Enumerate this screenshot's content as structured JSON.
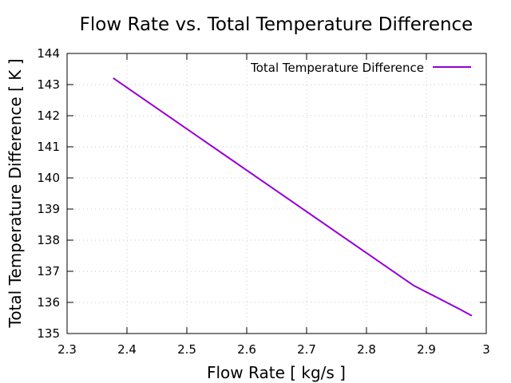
{
  "chart_data": {
    "type": "line",
    "title": "Flow Rate vs. Total Temperature Difference",
    "xlabel": "Flow Rate [ kg/s ]",
    "ylabel": "Total Temperature Difference [ K ]",
    "xlim": [
      2.3,
      3.0
    ],
    "ylim": [
      135,
      144
    ],
    "xticks": [
      "2.3",
      "2.4",
      "2.5",
      "2.6",
      "2.7",
      "2.8",
      "2.9",
      "3"
    ],
    "yticks": [
      "135",
      "136",
      "137",
      "138",
      "139",
      "140",
      "141",
      "142",
      "143",
      "144"
    ],
    "grid": true,
    "legend_position": "top-right",
    "series": [
      {
        "name": "Total Temperature Difference",
        "color": "#9400d3",
        "x": [
          2.377,
          2.879,
          2.957,
          2.976
        ],
        "y": [
          143.21,
          136.54,
          135.77,
          135.57
        ]
      }
    ]
  }
}
